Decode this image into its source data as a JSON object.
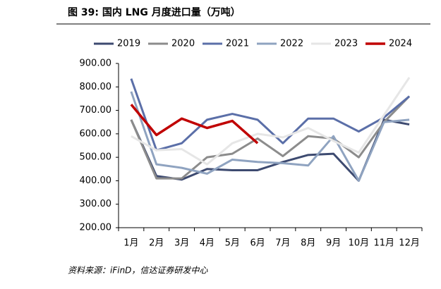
{
  "chart_data": {
    "type": "line",
    "title": "图 39: 国内 LNG 月度进口量（万吨）",
    "source": "资料来源：iFinD，信达证券研发中心",
    "categories": [
      "1月",
      "2月",
      "3月",
      "4月",
      "5月",
      "6月",
      "7月",
      "8月",
      "9月",
      "10月",
      "11月",
      "12月"
    ],
    "series": [
      {
        "name": "2019",
        "color": "#3d4a70",
        "values": [
          660,
          420,
          405,
          450,
          445,
          445,
          480,
          510,
          515,
          400,
          660,
          640
        ]
      },
      {
        "name": "2020",
        "color": "#8c8c8c",
        "values": [
          660,
          410,
          410,
          500,
          515,
          580,
          505,
          590,
          580,
          500,
          650,
          760
        ]
      },
      {
        "name": "2021",
        "color": "#5b6fa8",
        "values": [
          835,
          530,
          560,
          660,
          685,
          660,
          560,
          665,
          665,
          610,
          670,
          760
        ]
      },
      {
        "name": "2022",
        "color": "#8fa3c0",
        "values": [
          780,
          470,
          455,
          430,
          490,
          480,
          475,
          465,
          590,
          400,
          650,
          660
        ]
      },
      {
        "name": "2023",
        "color": "#e6e6e6",
        "values": [
          590,
          530,
          535,
          470,
          560,
          600,
          585,
          625,
          570,
          520,
          680,
          840
        ]
      },
      {
        "name": "2024",
        "color": "#c00000",
        "values": [
          725,
          595,
          665,
          625,
          655,
          560,
          null,
          null,
          null,
          null,
          null,
          null
        ]
      }
    ],
    "ylim": [
      200,
      900
    ],
    "yticks": [
      {
        "value": 200,
        "label": "200.00"
      },
      {
        "value": 300,
        "label": "300.00"
      },
      {
        "value": 400,
        "label": "400.00"
      },
      {
        "value": 500,
        "label": "500.00"
      },
      {
        "value": 600,
        "label": "600.00"
      },
      {
        "value": 700,
        "label": "700.00"
      },
      {
        "value": 800,
        "label": "800.00"
      },
      {
        "value": 900,
        "label": "900.00"
      }
    ],
    "grid": false,
    "legend": "top"
  }
}
